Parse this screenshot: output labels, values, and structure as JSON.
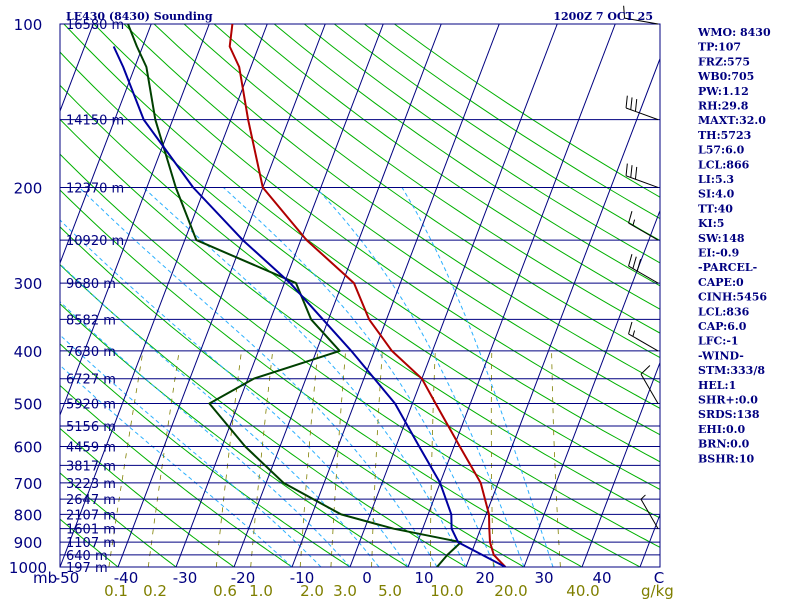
{
  "chart_data": {
    "type": "line",
    "title_left": "LE430 (8430) Sounding",
    "title_right": "1200Z  7 OCT 25",
    "y_unit_label": "mb",
    "mixing_ratio_unit": "g/kg",
    "y_scale": "log",
    "ylim": [
      1000,
      100
    ],
    "xlim": [
      -50,
      50
    ],
    "pressure_ticks": [
      100,
      200,
      300,
      400,
      500,
      600,
      700,
      800,
      900,
      1000
    ],
    "temperature_ticks": [
      "-50",
      "-40",
      "-30",
      "-20",
      "-10",
      "0",
      "10",
      "20",
      "30",
      "40",
      "C"
    ],
    "mixing_ratio_labels": [
      "0.1",
      "0.2",
      "0.6",
      "1.0",
      "2.0",
      "3.0",
      "5.0",
      "10.0",
      "20.0",
      "40.0"
    ],
    "height_labels": [
      {
        "p": 100,
        "label": "16580 m"
      },
      {
        "p": 150,
        "label": "14150 m"
      },
      {
        "p": 200,
        "label": "12370 m"
      },
      {
        "p": 250,
        "label": "10920 m"
      },
      {
        "p": 300,
        "label": "9680 m"
      },
      {
        "p": 350,
        "label": "8582 m"
      },
      {
        "p": 400,
        "label": "7630 m"
      },
      {
        "p": 450,
        "label": "6727 m"
      },
      {
        "p": 500,
        "label": "5920 m"
      },
      {
        "p": 550,
        "label": "5156 m"
      },
      {
        "p": 600,
        "label": "4459 m"
      },
      {
        "p": 650,
        "label": "3817 m"
      },
      {
        "p": 700,
        "label": "3223 m"
      },
      {
        "p": 750,
        "label": "2647 m"
      },
      {
        "p": 800,
        "label": "2107 m"
      },
      {
        "p": 850,
        "label": "1601 m"
      },
      {
        "p": 900,
        "label": "1107 m"
      },
      {
        "p": 950,
        "label": "640 m"
      },
      {
        "p": 1000,
        "label": "197 m"
      }
    ],
    "series": [
      {
        "role": "temperature",
        "color": "#b00000",
        "points": [
          [
            1000,
            26.8
          ],
          [
            950,
            24
          ],
          [
            900,
            22.5
          ],
          [
            850,
            21.5
          ],
          [
            800,
            20.5
          ],
          [
            700,
            17
          ],
          [
            600,
            11
          ],
          [
            500,
            4
          ],
          [
            450,
            0
          ],
          [
            400,
            -7
          ],
          [
            350,
            -13
          ],
          [
            300,
            -18
          ],
          [
            250,
            -29
          ],
          [
            200,
            -40
          ],
          [
            150,
            -47
          ],
          [
            120,
            -52
          ],
          [
            110,
            -55
          ],
          [
            100,
            -56
          ]
        ]
      },
      {
        "role": "dewpoint",
        "color": "#004000",
        "points": [
          [
            1000,
            15
          ],
          [
            950,
            16
          ],
          [
            900,
            17.5
          ],
          [
            850,
            5
          ],
          [
            800,
            -5
          ],
          [
            700,
            -17
          ],
          [
            600,
            -26
          ],
          [
            500,
            -35
          ],
          [
            450,
            -29
          ],
          [
            400,
            -16
          ],
          [
            350,
            -23
          ],
          [
            300,
            -28
          ],
          [
            250,
            -48
          ],
          [
            200,
            -55
          ],
          [
            150,
            -63
          ],
          [
            120,
            -68
          ],
          [
            110,
            -71
          ],
          [
            100,
            -74
          ]
        ]
      },
      {
        "role": "parcel",
        "color": "#0000a0",
        "points": [
          [
            1000,
            26.8
          ],
          [
            950,
            22
          ],
          [
            900,
            17
          ],
          [
            850,
            15
          ],
          [
            800,
            14
          ],
          [
            700,
            10
          ],
          [
            600,
            4
          ],
          [
            500,
            -3
          ],
          [
            400,
            -14
          ],
          [
            300,
            -29
          ],
          [
            250,
            -40
          ],
          [
            200,
            -52
          ],
          [
            150,
            -65
          ],
          [
            120,
            -72
          ],
          [
            110,
            -75
          ]
        ]
      }
    ],
    "wind_barbs": [
      {
        "p": 100,
        "dir": 280,
        "spd": 15
      },
      {
        "p": 150,
        "dir": 290,
        "spd": 30
      },
      {
        "p": 200,
        "dir": 290,
        "spd": 30
      },
      {
        "p": 250,
        "dir": 300,
        "spd": 15
      },
      {
        "p": 300,
        "dir": 300,
        "spd": 30
      },
      {
        "p": 400,
        "dir": 300,
        "spd": 15
      },
      {
        "p": 500,
        "dir": 330,
        "spd": 10
      },
      {
        "p": 850,
        "dir": 330,
        "spd": 5
      }
    ],
    "indices": [
      "WMO: 8430",
      "TP:107",
      "FRZ:575",
      "WB0:705",
      "PW:1.12",
      "RH:29.8",
      "MAXT:32.0",
      "TH:5723",
      "L57:6.0",
      "LCL:866",
      "LI:5.3",
      "SI:4.0",
      "TT:40",
      "KI:5",
      "SW:148",
      "EI:-0.9",
      "-PARCEL-",
      "CAPE:0",
      "CINH:5456",
      "LCL:836",
      "CAP:6.0",
      "LFC:-1",
      "-WIND-",
      "STM:333/8",
      "HEL:1",
      "SHR+:0.0",
      "SRDS:138",
      "EHI:0.0",
      "BRN:0.0",
      "BSHR:10"
    ]
  },
  "colors": {
    "isobar": "#000080",
    "isotherm": "#000080",
    "dry_adiabat": "#00b000",
    "moist_adiabat": "#2cb0ff",
    "mixing_ratio": "#808000",
    "text": "#000080",
    "mixing_ratio_text": "#7f7f00"
  }
}
